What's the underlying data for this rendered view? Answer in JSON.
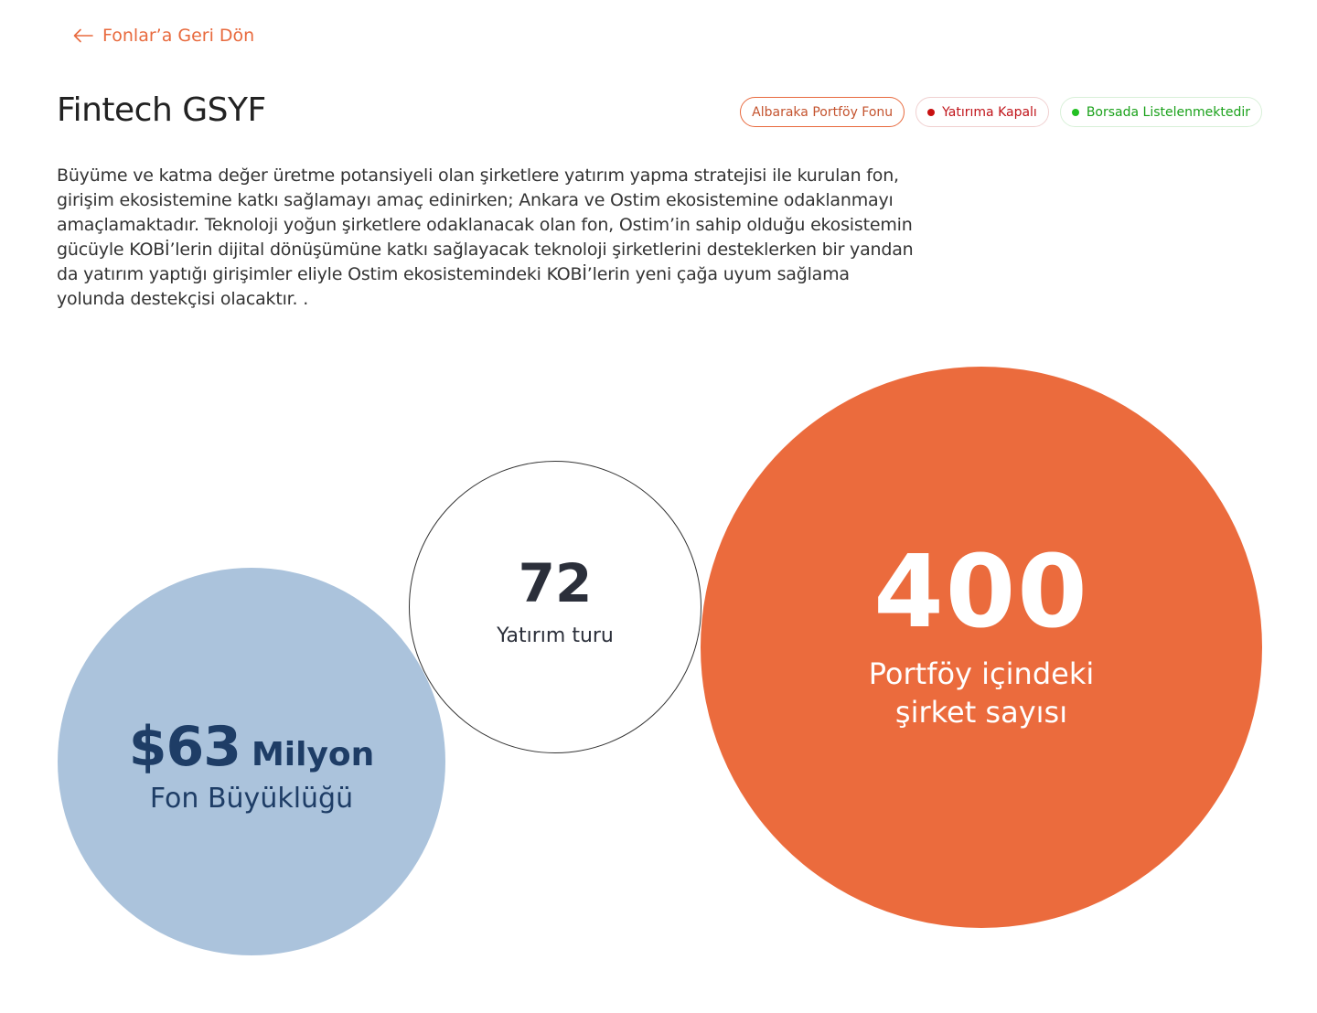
{
  "back_link": {
    "label": "Fonlar’a Geri Dön",
    "icon": "arrow-left-icon"
  },
  "page_title": "Fintech GSYF",
  "badges": {
    "fund_manager": "Albaraka Portföy Fonu",
    "investment_status": "Yatırıma Kapalı",
    "listing_status": "Borsada Listelenmektedir"
  },
  "description": "Büyüme ve katma değer üretme potansiyeli olan şirketlere yatırım yapma stratejisi ile kurulan fon, girişim ekosistemine katkı sağlamayı amaç edinirken; Ankara ve Ostim ekosistemine odaklanmayı amaçlamaktadır. Teknoloji yoğun şirketlere odaklanacak olan fon, Ostim’in sahip olduğu ekosistemin  gücüyle KOBİ’lerin dijital dönüşümüne katkı sağlayacak teknoloji şirketlerini desteklerken bir yandan  da yatırım yaptığı girişimler eliyle Ostim ekosistemindeki KOBİ’lerin yeni çağa uyum sağlama  yolunda destekçisi olacaktır. .",
  "stats": {
    "fund_size": {
      "amount": "$63",
      "unit": "Milyon",
      "label": "Fon Büyüklüğü"
    },
    "investment_rounds": {
      "value": "72",
      "label": "Yatırım turu"
    },
    "portfolio_companies": {
      "value": "400",
      "label": "Portföy içindeki şirket sayısı"
    }
  },
  "colors": {
    "accent": "#e86a3e",
    "orange_circle": "#eb6b3d",
    "blue_circle": "#abc3dc",
    "navy_text": "#1e3d66",
    "closed_red": "#c0141a",
    "listed_green": "#1aa11a"
  }
}
